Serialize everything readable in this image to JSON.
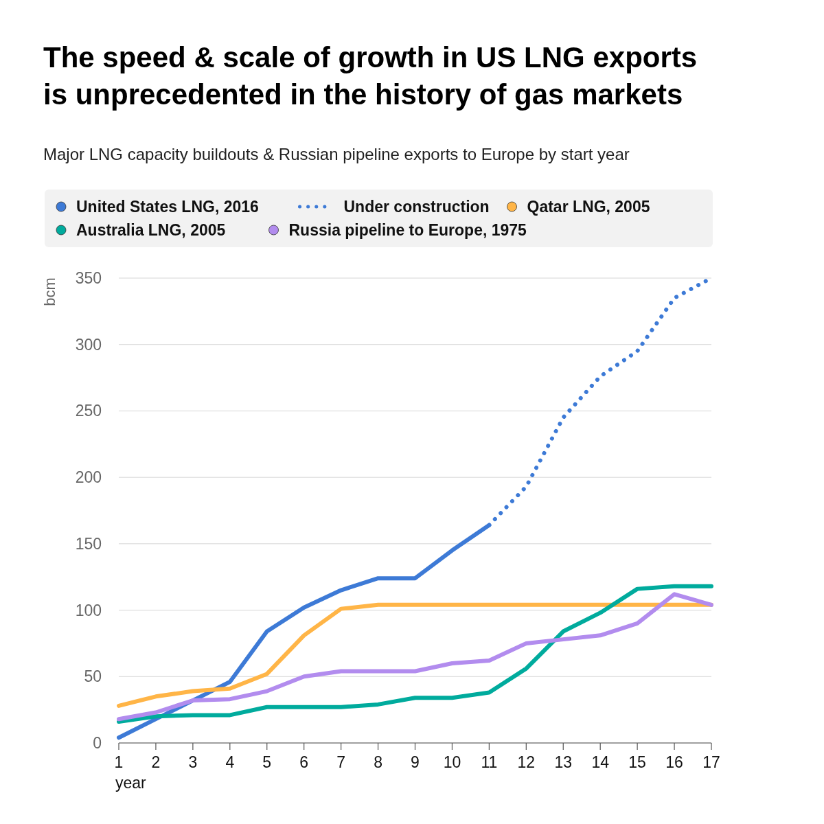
{
  "chart_data": {
    "type": "line",
    "title": "The speed & scale of growth in US LNG exports is unprecedented in the history of gas markets",
    "subtitle": "Major LNG capacity buildouts & Russian pipeline exports to Europe by start year",
    "xlabel": "year",
    "ylabel": "bcm",
    "x": [
      1,
      2,
      3,
      4,
      5,
      6,
      7,
      8,
      9,
      10,
      11,
      12,
      13,
      14,
      15,
      16,
      17
    ],
    "series": [
      {
        "name": "United States LNG, 2016",
        "color": "#3d7ad6",
        "values": [
          4,
          18,
          32,
          46,
          84,
          102,
          115,
          124,
          124,
          145,
          164,
          null,
          null,
          null,
          null,
          null,
          null
        ]
      },
      {
        "name": "Under construction",
        "color": "#3d7ad6",
        "line_style": "dotted",
        "x": [
          11,
          12,
          13,
          14,
          15,
          16,
          17
        ],
        "values": [
          164,
          193,
          245,
          276,
          295,
          335,
          350
        ]
      },
      {
        "name": "Qatar LNG, 2005",
        "color": "#ffb547",
        "values": [
          28,
          35,
          39,
          41,
          52,
          81,
          101,
          104,
          104,
          104,
          104,
          104,
          104,
          104,
          104,
          104,
          104
        ]
      },
      {
        "name": "Australia LNG, 2005",
        "color": "#00ab9d",
        "values": [
          16,
          20,
          21,
          21,
          27,
          27,
          27,
          29,
          34,
          34,
          38,
          56,
          84,
          98,
          116,
          118,
          118
        ]
      },
      {
        "name": "Russia pipeline to Europe, 1975",
        "color": "#b28cee",
        "values": [
          18,
          23,
          32,
          33,
          39,
          50,
          54,
          54,
          54,
          60,
          62,
          75,
          78,
          81,
          90,
          112,
          104
        ]
      }
    ],
    "xlim": [
      1,
      17
    ],
    "xticks": [
      1,
      2,
      3,
      4,
      5,
      6,
      7,
      8,
      9,
      10,
      11,
      12,
      13,
      14,
      15,
      16,
      17
    ],
    "ylim": [
      0,
      350
    ],
    "yticks": [
      0,
      50,
      100,
      150,
      200,
      250,
      300,
      350
    ],
    "grid": "y",
    "legend": "top",
    "marker": "none",
    "line_style": "solid"
  }
}
